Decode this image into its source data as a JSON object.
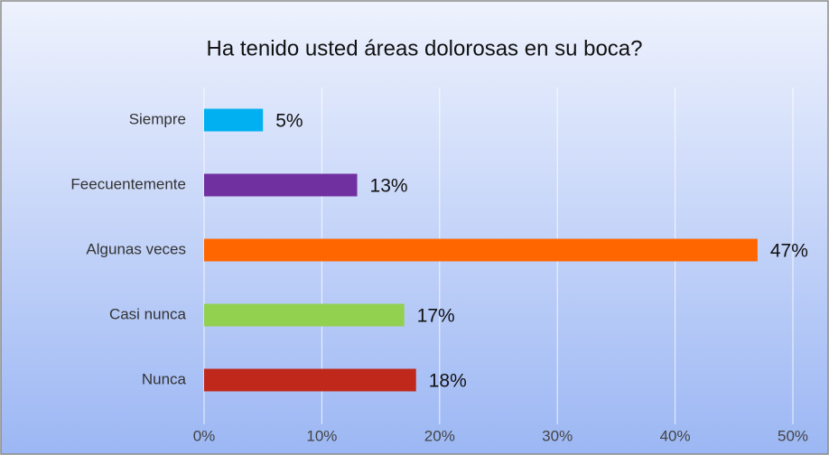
{
  "chart_data": {
    "type": "bar",
    "orientation": "horizontal",
    "title": "Ha tenido usted áreas dolorosas en su boca?",
    "categories": [
      "Siempre",
      "Feecuentemente",
      "Algunas veces",
      "Casi nunca",
      "Nunca"
    ],
    "values": [
      5,
      13,
      47,
      17,
      18
    ],
    "value_labels": [
      "5%",
      "13%",
      "47%",
      "17%",
      "18%"
    ],
    "colors": [
      "#00b0f0",
      "#7030a0",
      "#ff6600",
      "#92d050",
      "#c0281c"
    ],
    "xlim": [
      0,
      50
    ],
    "xticks": [
      {
        "value": 0,
        "label": "0%"
      },
      {
        "value": 10,
        "label": "10%"
      },
      {
        "value": 20,
        "label": "20%"
      },
      {
        "value": 30,
        "label": "30%"
      },
      {
        "value": 40,
        "label": "40%"
      },
      {
        "value": 50,
        "label": "50%"
      }
    ],
    "grid": true
  }
}
